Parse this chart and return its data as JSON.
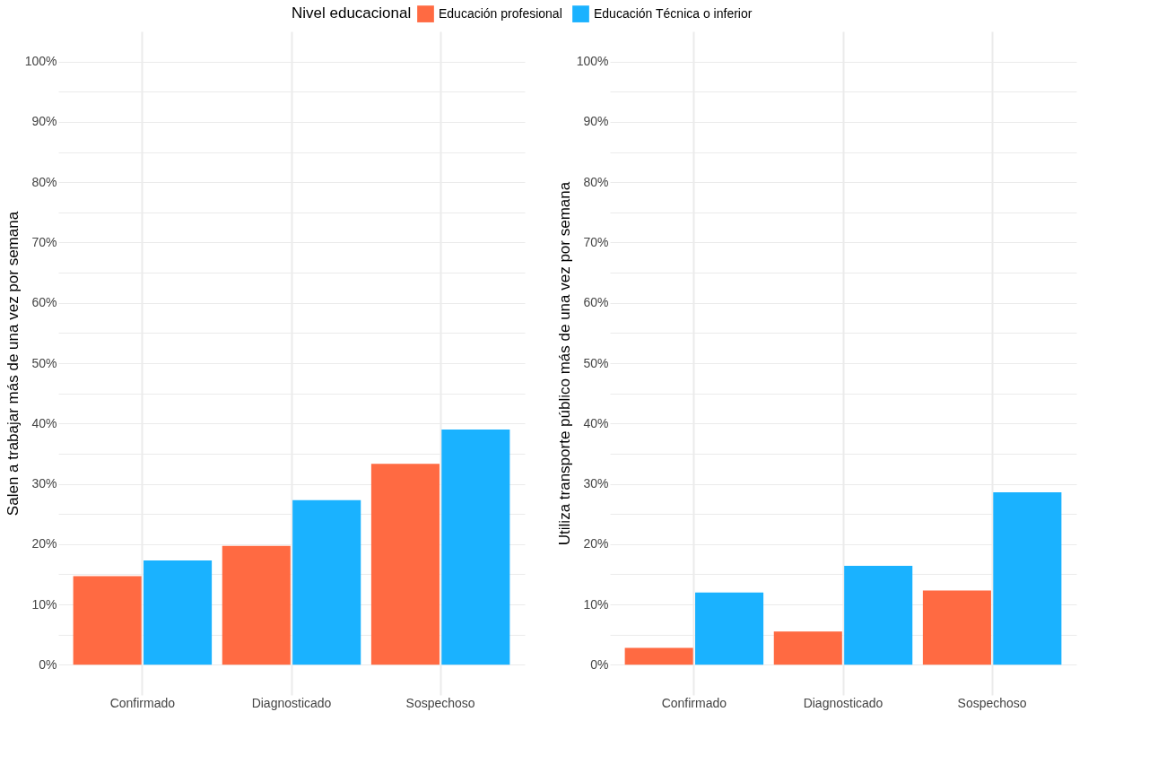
{
  "chart_data": [
    {
      "type": "bar",
      "ylabel": "Salen a trabajar más de una vez por semana",
      "legend_title": "Nivel educacional",
      "legend": "top",
      "grid": true,
      "categories": [
        "Confirmado",
        "Diagnosticado",
        "Sospechoso"
      ],
      "series": [
        {
          "name": "Educación profesional",
          "color": "#ff6a42",
          "values": [
            14.7,
            19.7,
            33.3
          ]
        },
        {
          "name": "Educación Técnica o inferior",
          "color": "#1ab2ff",
          "values": [
            17.3,
            27.3,
            39.0
          ]
        }
      ],
      "ylim": [
        -5,
        105
      ],
      "yticks": [
        {
          "value": 0,
          "label": "0%"
        },
        {
          "value": 5,
          "label": null
        },
        {
          "value": 10,
          "label": "10%"
        },
        {
          "value": 15,
          "label": null
        },
        {
          "value": 20,
          "label": "20%"
        },
        {
          "value": 25,
          "label": null
        },
        {
          "value": 30,
          "label": "30%"
        },
        {
          "value": 35,
          "label": null
        },
        {
          "value": 40,
          "label": "40%"
        },
        {
          "value": 45,
          "label": null
        },
        {
          "value": 50,
          "label": "50%"
        },
        {
          "value": 55,
          "label": null
        },
        {
          "value": 60,
          "label": "60%"
        },
        {
          "value": 65,
          "label": null
        },
        {
          "value": 70,
          "label": "70%"
        },
        {
          "value": 75,
          "label": null
        },
        {
          "value": 80,
          "label": "80%"
        },
        {
          "value": 85,
          "label": null
        },
        {
          "value": 90,
          "label": "90%"
        },
        {
          "value": 95,
          "label": null
        },
        {
          "value": 100,
          "label": "100%"
        }
      ]
    },
    {
      "type": "bar",
      "ylabel": "Utiliza transporte público más de una vez por semana",
      "grid": true,
      "categories": [
        "Confirmado",
        "Diagnosticado",
        "Sospechoso"
      ],
      "series": [
        {
          "name": "Educación profesional",
          "color": "#ff6a42",
          "values": [
            2.8,
            5.5,
            12.3
          ]
        },
        {
          "name": "Educación Técnica o inferior",
          "color": "#1ab2ff",
          "values": [
            12.0,
            16.4,
            28.6
          ]
        }
      ],
      "ylim": [
        -5,
        105
      ],
      "yticks": [
        {
          "value": 0,
          "label": "0%"
        },
        {
          "value": 5,
          "label": null
        },
        {
          "value": 10,
          "label": "10%"
        },
        {
          "value": 15,
          "label": null
        },
        {
          "value": 20,
          "label": "20%"
        },
        {
          "value": 25,
          "label": null
        },
        {
          "value": 30,
          "label": "30%"
        },
        {
          "value": 35,
          "label": null
        },
        {
          "value": 40,
          "label": "40%"
        },
        {
          "value": 45,
          "label": null
        },
        {
          "value": 50,
          "label": "50%"
        },
        {
          "value": 55,
          "label": null
        },
        {
          "value": 60,
          "label": "60%"
        },
        {
          "value": 65,
          "label": null
        },
        {
          "value": 70,
          "label": "70%"
        },
        {
          "value": 75,
          "label": null
        },
        {
          "value": 80,
          "label": "80%"
        },
        {
          "value": 85,
          "label": null
        },
        {
          "value": 90,
          "label": "90%"
        },
        {
          "value": 95,
          "label": null
        },
        {
          "value": 100,
          "label": "100%"
        }
      ]
    }
  ]
}
